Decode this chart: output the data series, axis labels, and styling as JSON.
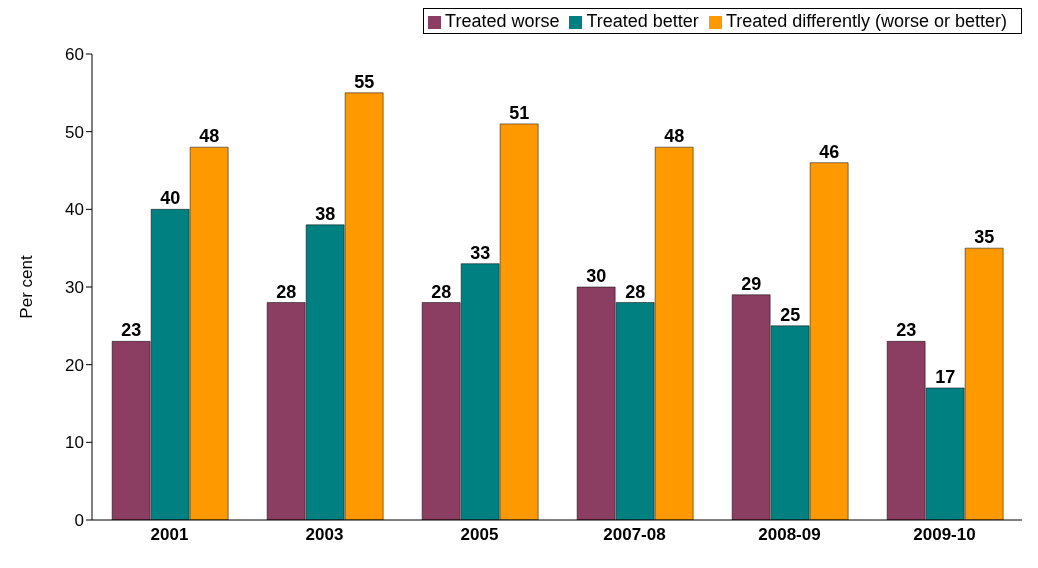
{
  "chart_data": {
    "type": "bar",
    "ylabel": "Per cent",
    "categories": [
      "2001",
      "2003",
      "2005",
      "2007-08",
      "2008-09",
      "2009-10"
    ],
    "series": [
      {
        "name": "Treated worse",
        "color": "#8b3d62",
        "values": [
          23,
          28,
          28,
          30,
          29,
          23
        ]
      },
      {
        "name": "Treated better",
        "color": "#008080",
        "values": [
          40,
          38,
          33,
          28,
          25,
          17
        ]
      },
      {
        "name": "Treated differently (worse or better)",
        "color": "#ff9900",
        "values": [
          48,
          55,
          51,
          48,
          46,
          35
        ]
      }
    ],
    "ylim": [
      0,
      60
    ],
    "yticks": [
      0,
      10,
      20,
      30,
      40,
      50,
      60
    ],
    "grid": false,
    "legend": "top right",
    "data_labels": true
  }
}
